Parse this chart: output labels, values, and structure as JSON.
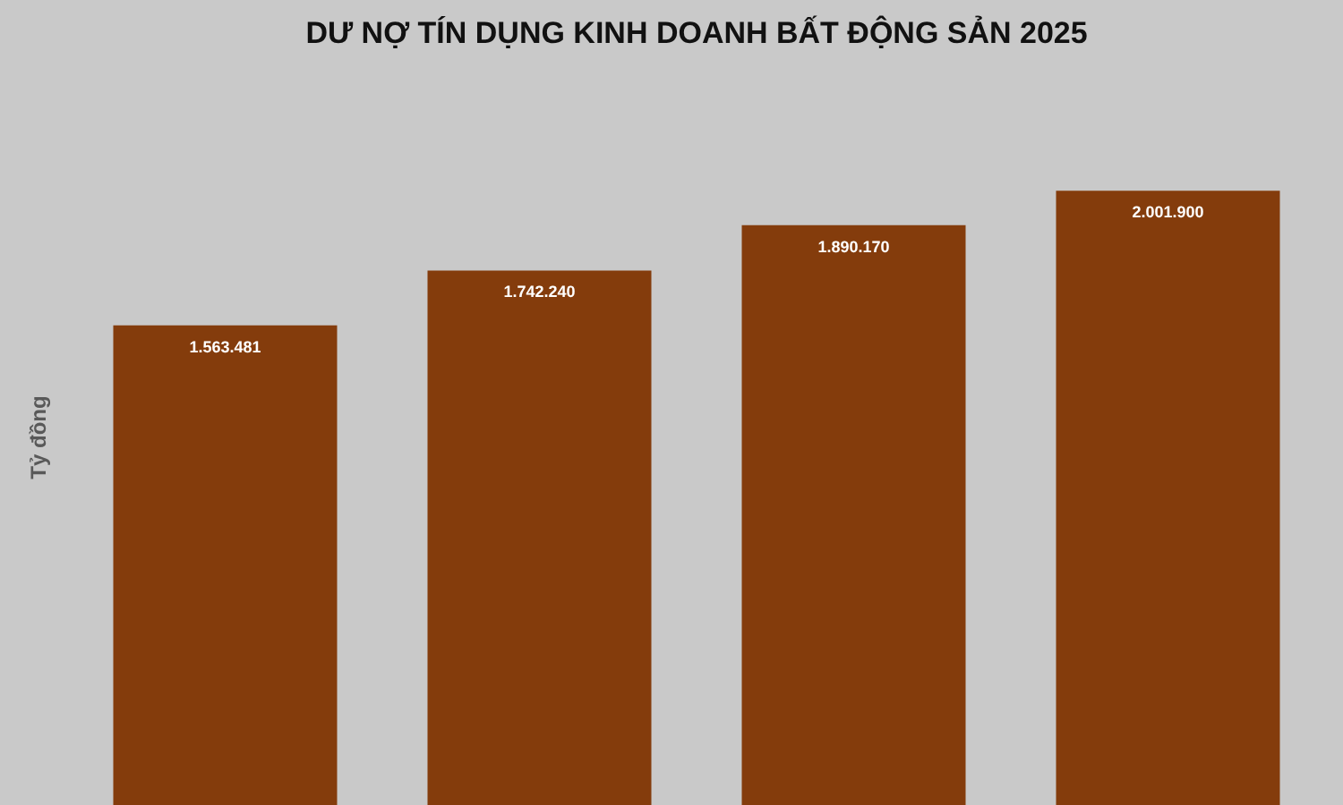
{
  "chart_data": {
    "type": "bar",
    "title": "DƯ NỢ TÍN DỤNG KINH DOANH BẤT ĐỘNG SẢN 2025",
    "ylabel": "Tỷ đồng",
    "categories": [
      null,
      null,
      null,
      null
    ],
    "values": [
      1563481,
      1742240,
      1890170,
      2001900
    ],
    "value_labels": [
      "1.563.481",
      "1.742.240",
      "1.890.170",
      "2.001.900"
    ],
    "color": "#843c0c",
    "grid": false
  }
}
